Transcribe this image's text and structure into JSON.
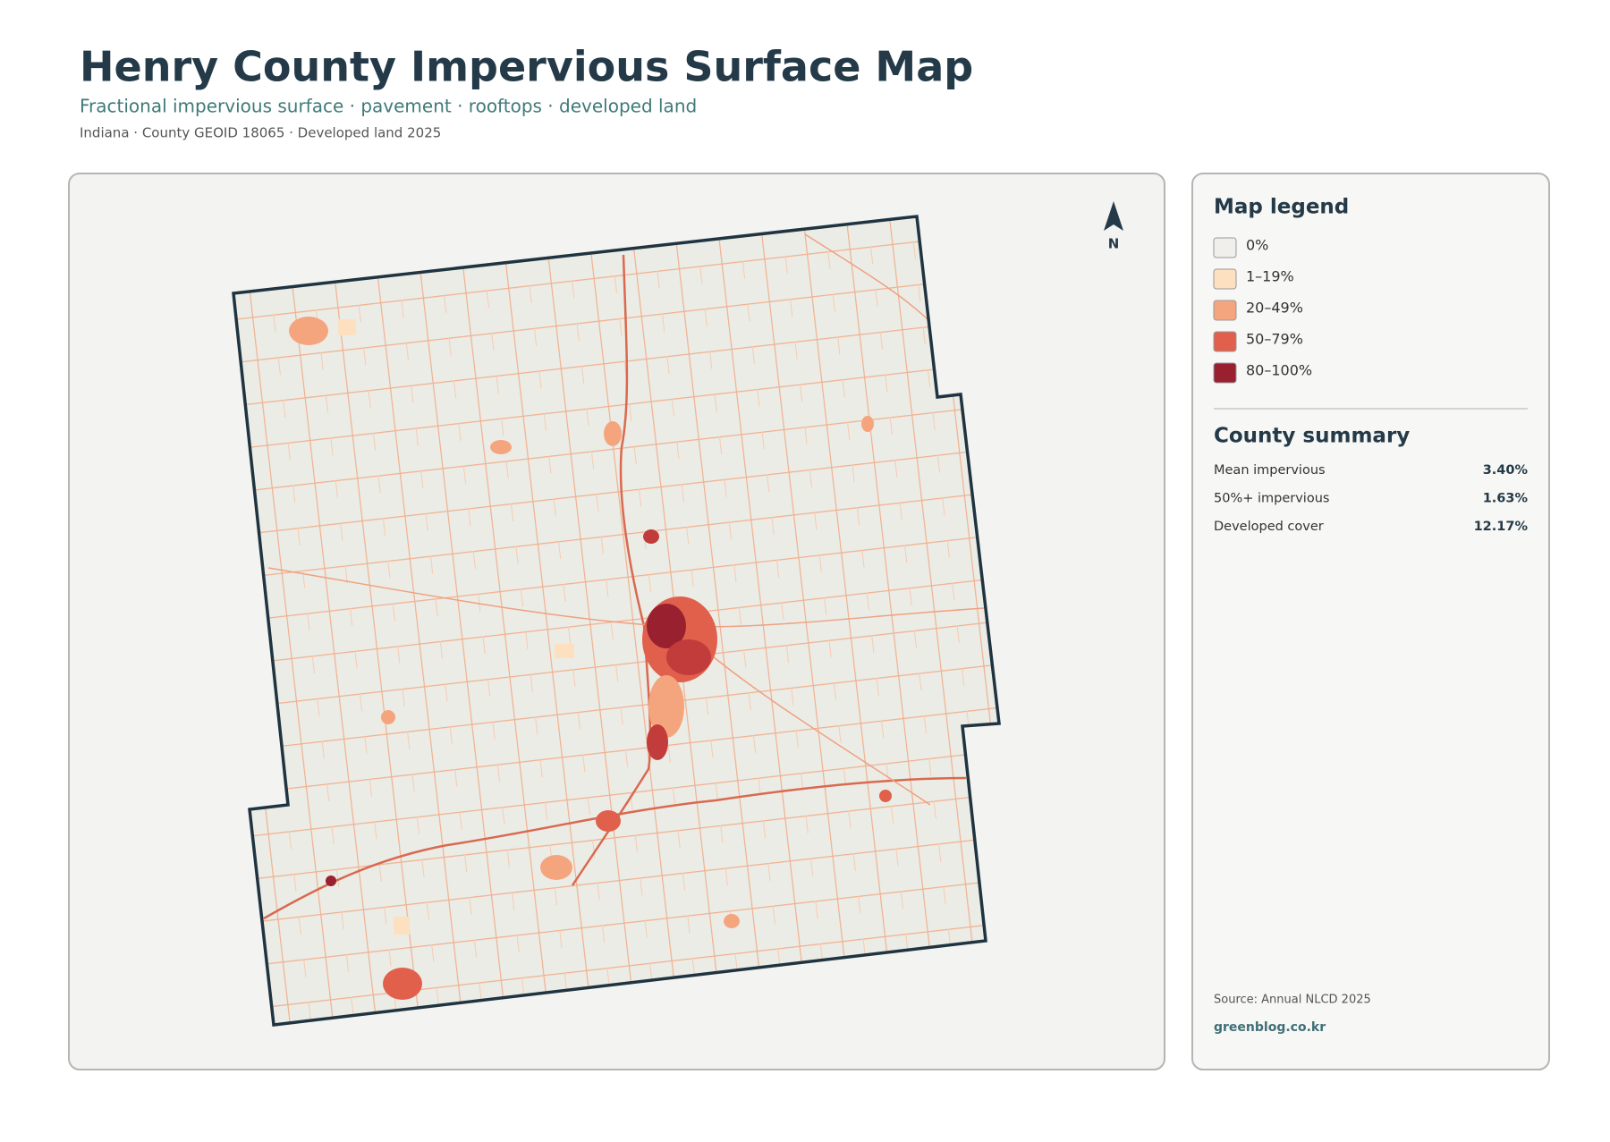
{
  "header": {
    "title": "Henry County Impervious Surface Map",
    "subtitle": "Fractional impervious surface · pavement · rooftops · developed land",
    "meta": "Indiana · County GEOID 18065 · Developed land 2025"
  },
  "map": {
    "north_label": "N"
  },
  "legend": {
    "title": "Map legend",
    "items": [
      {
        "label": "0%",
        "color": "#f0efec"
      },
      {
        "label": "1–19%",
        "color": "#fde0c0"
      },
      {
        "label": "20–49%",
        "color": "#f4a57e"
      },
      {
        "label": "50–79%",
        "color": "#e0604c"
      },
      {
        "label": "80–100%",
        "color": "#98202f"
      }
    ]
  },
  "summary": {
    "title": "County summary",
    "rows": [
      [
        "Mean impervious",
        "3.40%"
      ],
      [
        "50%+ impervious",
        "1.63%"
      ],
      [
        "Developed cover",
        "12.17%"
      ]
    ]
  },
  "footer": {
    "source": "Source: Annual NLCD 2025",
    "site": "greenblog.co.kr"
  }
}
